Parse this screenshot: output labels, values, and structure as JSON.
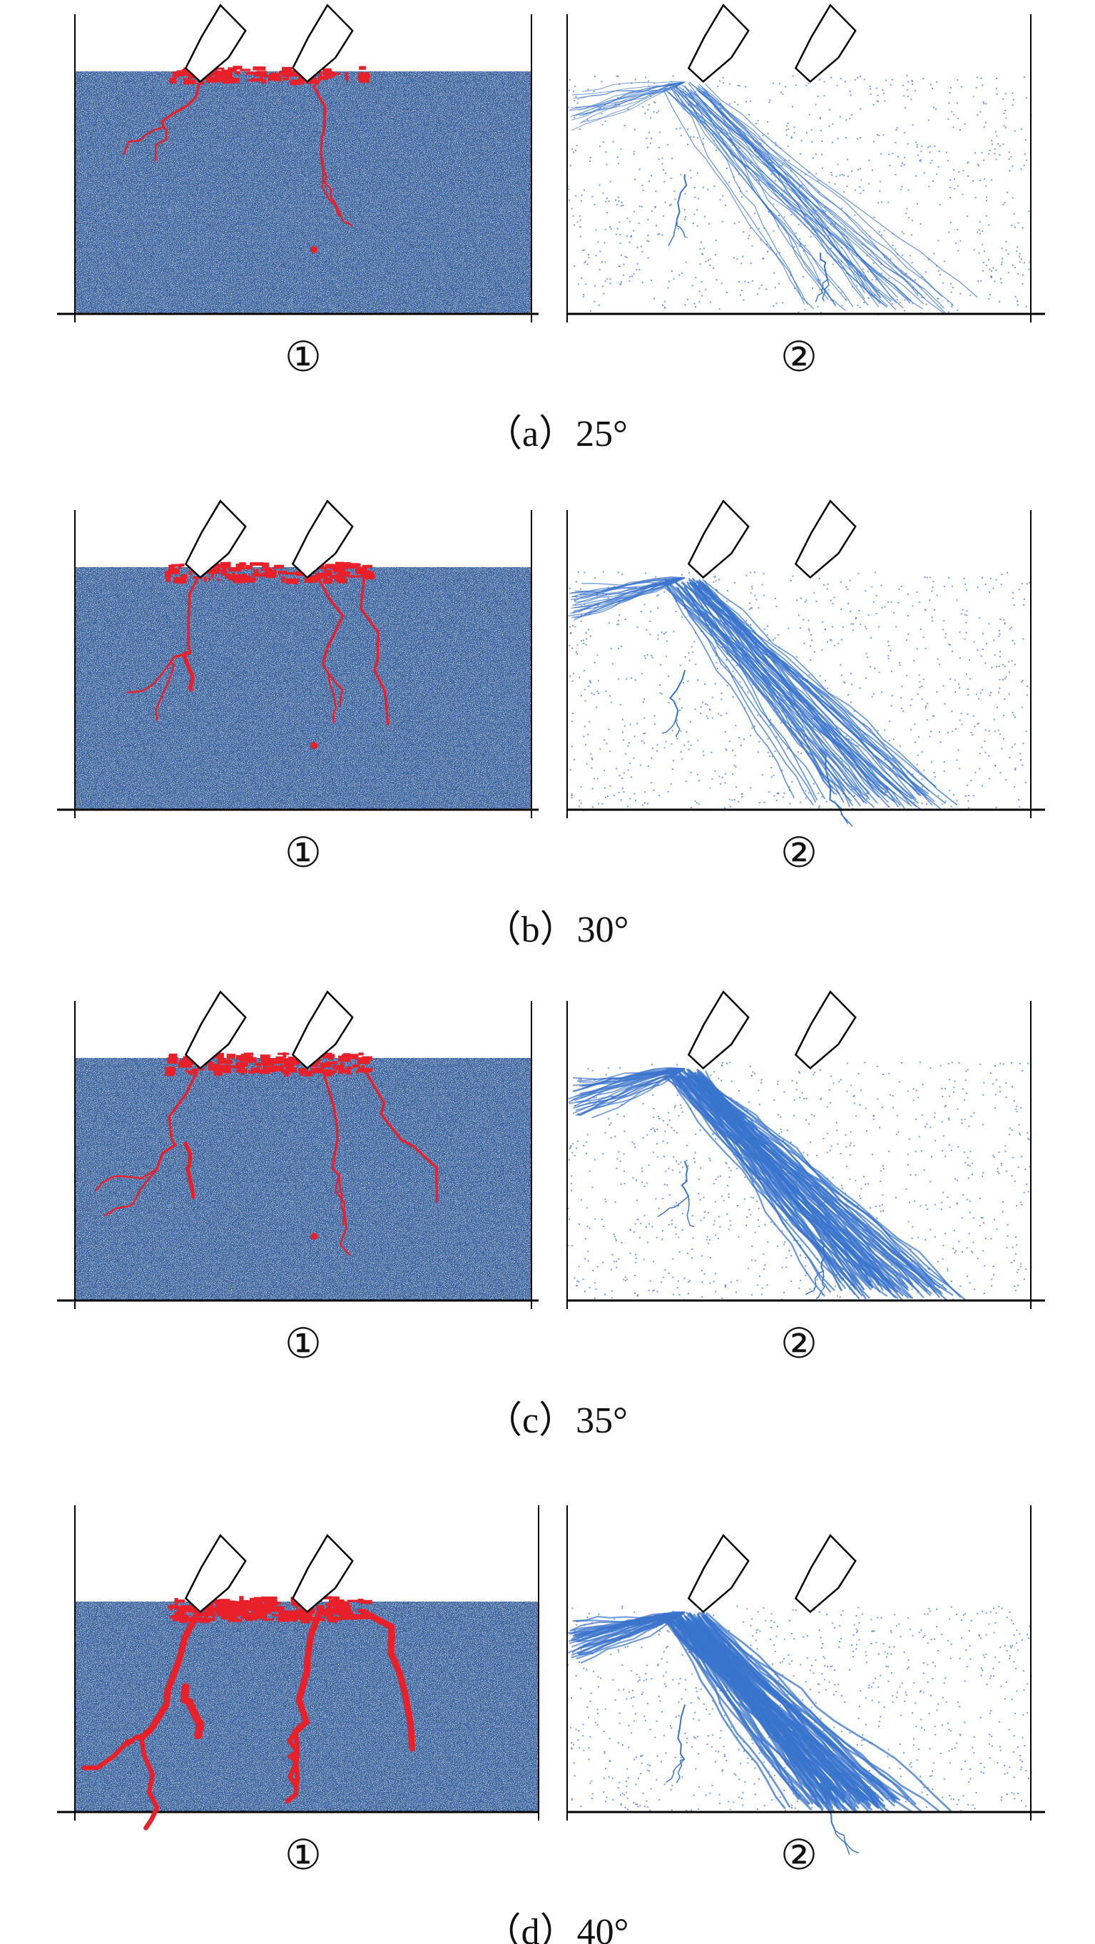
{
  "panel_markers": {
    "left": "①",
    "right": "②"
  },
  "colors": {
    "particles": "#3e68ad",
    "particles_dark": "#0f1d3a",
    "particles_light": "#cfdcf0",
    "broken_bonds": "#e8202a",
    "force_chains": "#3a74cc",
    "axes": "#000000"
  },
  "rows": [
    {
      "caption": "（a）25°",
      "angle": 25
    },
    {
      "caption": "（b）30°",
      "angle": 30
    },
    {
      "caption": "（c）35°",
      "angle": 35
    },
    {
      "caption": "（d）40°",
      "angle": 40
    }
  ]
}
